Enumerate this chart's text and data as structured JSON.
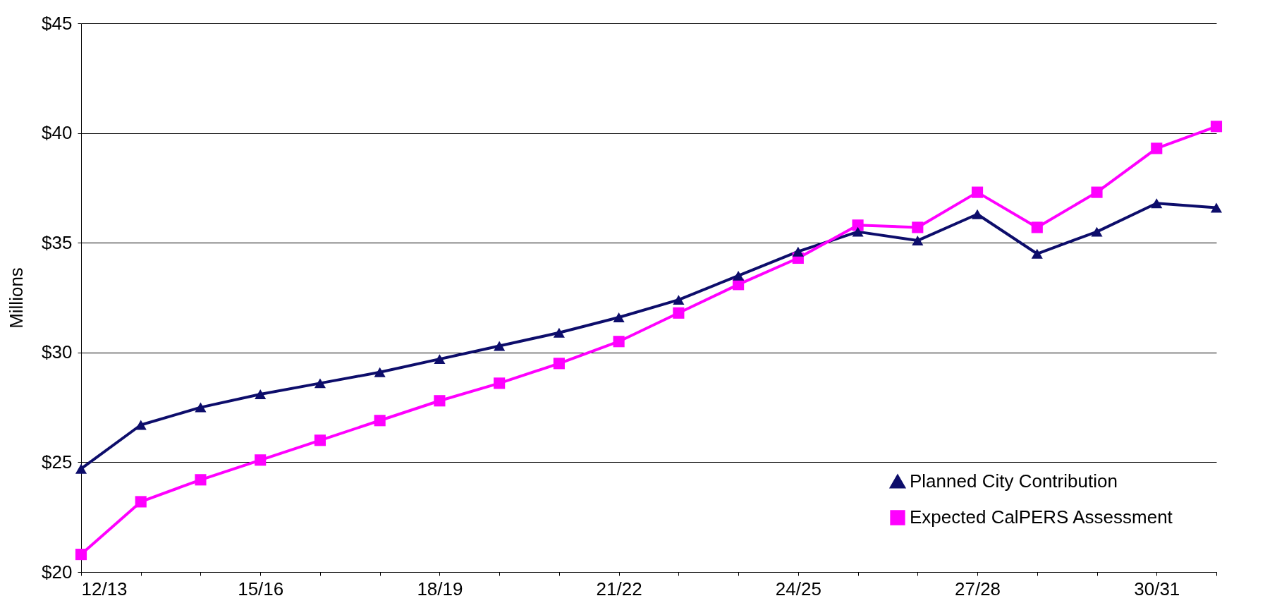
{
  "chart_data": {
    "type": "line",
    "ylabel": "Millions",
    "categories": [
      "12/13",
      null,
      null,
      "15/16",
      null,
      null,
      "18/19",
      null,
      null,
      "21/22",
      null,
      null,
      "24/25",
      null,
      null,
      "27/28",
      null,
      null,
      "30/31",
      null
    ],
    "series": [
      {
        "name": "Planned City Contribution",
        "color": "#0d0d6b",
        "marker": "triangle",
        "values": [
          24.7,
          26.7,
          27.5,
          28.1,
          28.6,
          29.1,
          29.7,
          30.3,
          30.9,
          31.6,
          32.4,
          33.5,
          34.6,
          35.5,
          35.1,
          36.3,
          34.5,
          35.5,
          36.8,
          36.6
        ]
      },
      {
        "name": "Expected CalPERS Assessment",
        "color": "#ff00ff",
        "marker": "square",
        "values": [
          20.8,
          23.2,
          24.2,
          25.1,
          26.0,
          26.9,
          27.8,
          28.6,
          29.5,
          30.5,
          31.8,
          33.1,
          34.3,
          35.8,
          35.7,
          37.3,
          35.7,
          37.3,
          39.3,
          40.3
        ]
      }
    ],
    "ylim": [
      20,
      45
    ],
    "yticks": [
      {
        "value": 20,
        "label": "$20"
      },
      {
        "value": 25,
        "label": "$25"
      },
      {
        "value": 30,
        "label": "$30"
      },
      {
        "value": 35,
        "label": "$35"
      },
      {
        "value": 40,
        "label": "$40"
      },
      {
        "value": 45,
        "label": "$45"
      }
    ],
    "grid": "y",
    "legend": "bottom right",
    "line_style": "solid"
  }
}
